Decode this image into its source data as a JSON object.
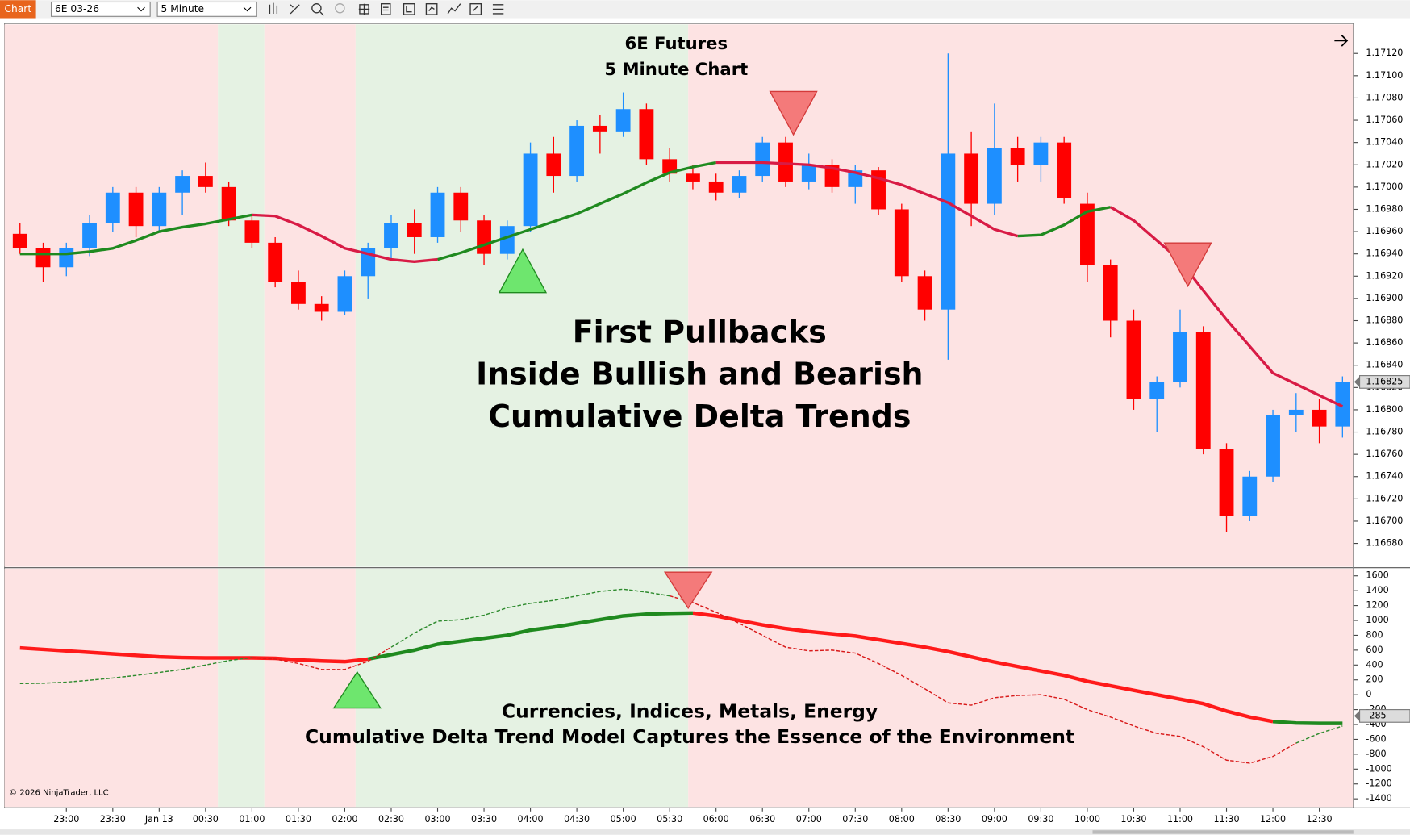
{
  "toolbar": {
    "tab": "Chart",
    "instrument": "6E 03-26",
    "interval": "5 Minute"
  },
  "copyright": "© 2026 NinjaTrader, LLC",
  "chart_data": [
    {
      "type": "candlestick",
      "title": [
        "6E Futures",
        "5 Minute Chart"
      ],
      "annotation": [
        "First Pullbacks",
        "Inside Bullish and Bearish",
        "Cumulative Delta Trends"
      ],
      "up_color": "#1e8fff",
      "down_color": "#ff0000",
      "xlim": [
        20,
        892
      ],
      "xticks": [
        {
          "value": 60,
          "label": "23:00"
        },
        {
          "value": 90,
          "label": "23:30"
        },
        {
          "value": 120,
          "label": "Jan 13"
        },
        {
          "value": 150,
          "label": "00:30"
        },
        {
          "value": 180,
          "label": "01:00"
        },
        {
          "value": 210,
          "label": "01:30"
        },
        {
          "value": 240,
          "label": "02:00"
        },
        {
          "value": 270,
          "label": "02:30"
        },
        {
          "value": 300,
          "label": "03:00"
        },
        {
          "value": 330,
          "label": "03:30"
        },
        {
          "value": 360,
          "label": "04:00"
        },
        {
          "value": 390,
          "label": "04:30"
        },
        {
          "value": 420,
          "label": "05:00"
        },
        {
          "value": 450,
          "label": "05:30"
        },
        {
          "value": 480,
          "label": "06:00"
        },
        {
          "value": 510,
          "label": "06:30"
        },
        {
          "value": 540,
          "label": "07:00"
        },
        {
          "value": 570,
          "label": "07:30"
        },
        {
          "value": 600,
          "label": "08:00"
        },
        {
          "value": 630,
          "label": "08:30"
        },
        {
          "value": 660,
          "label": "09:00"
        },
        {
          "value": 690,
          "label": "09:30"
        },
        {
          "value": 720,
          "label": "10:00"
        },
        {
          "value": 750,
          "label": "10:30"
        },
        {
          "value": 780,
          "label": "11:00"
        },
        {
          "value": 810,
          "label": "11:30"
        },
        {
          "value": 840,
          "label": "12:00"
        },
        {
          "value": 870,
          "label": "12:30"
        }
      ],
      "regions": [
        {
          "x0": 20,
          "x1": 158,
          "color": "#fde3e3"
        },
        {
          "x0": 158,
          "x1": 188,
          "color": "#e5f2e3"
        },
        {
          "x0": 188,
          "x1": 247,
          "color": "#fde3e3"
        },
        {
          "x0": 247,
          "x1": 462,
          "color": "#e5f2e3"
        },
        {
          "x0": 462,
          "x1": 892,
          "color": "#fde3e3"
        }
      ],
      "x": [
        30,
        45,
        60,
        75,
        90,
        105,
        120,
        135,
        150,
        165,
        180,
        195,
        210,
        225,
        240,
        255,
        270,
        285,
        300,
        315,
        330,
        345,
        360,
        375,
        390,
        405,
        420,
        435,
        450,
        465,
        480,
        495,
        510,
        525,
        540,
        555,
        570,
        585,
        600,
        615,
        630,
        645,
        660,
        675,
        690,
        705,
        720,
        735,
        750,
        765,
        780,
        795,
        810,
        825,
        840,
        855,
        870,
        885
      ],
      "ohlc": [
        [
          1.16958,
          1.16968,
          1.1694,
          1.16945
        ],
        [
          1.16945,
          1.1695,
          1.16915,
          1.16928
        ],
        [
          1.16928,
          1.1695,
          1.1692,
          1.16945
        ],
        [
          1.16945,
          1.16975,
          1.16938,
          1.16968
        ],
        [
          1.16968,
          1.17,
          1.1696,
          1.16995
        ],
        [
          1.16995,
          1.17,
          1.16955,
          1.16965
        ],
        [
          1.16965,
          1.17,
          1.1696,
          1.16995
        ],
        [
          1.16995,
          1.17015,
          1.16975,
          1.1701
        ],
        [
          1.1701,
          1.17022,
          1.16995,
          1.17
        ],
        [
          1.17,
          1.17005,
          1.16965,
          1.1697
        ],
        [
          1.1697,
          1.16975,
          1.16945,
          1.1695
        ],
        [
          1.1695,
          1.16955,
          1.1691,
          1.16915
        ],
        [
          1.16915,
          1.16925,
          1.1689,
          1.16895
        ],
        [
          1.16895,
          1.16902,
          1.1688,
          1.16888
        ],
        [
          1.16888,
          1.16925,
          1.16885,
          1.1692
        ],
        [
          1.1692,
          1.1695,
          1.169,
          1.16945
        ],
        [
          1.16945,
          1.16975,
          1.16935,
          1.16968
        ],
        [
          1.16968,
          1.1698,
          1.1694,
          1.16955
        ],
        [
          1.16955,
          1.17,
          1.1695,
          1.16995
        ],
        [
          1.16995,
          1.17,
          1.1696,
          1.1697
        ],
        [
          1.1697,
          1.16975,
          1.1693,
          1.1694
        ],
        [
          1.1694,
          1.1697,
          1.16935,
          1.16965
        ],
        [
          1.16965,
          1.1704,
          1.1696,
          1.1703
        ],
        [
          1.1703,
          1.17045,
          1.16995,
          1.1701
        ],
        [
          1.1701,
          1.1706,
          1.17005,
          1.17055
        ],
        [
          1.17055,
          1.17065,
          1.1703,
          1.1705
        ],
        [
          1.1705,
          1.17085,
          1.17045,
          1.1707
        ],
        [
          1.1707,
          1.17075,
          1.1702,
          1.17025
        ],
        [
          1.17025,
          1.17035,
          1.17005,
          1.17012
        ],
        [
          1.17012,
          1.1702,
          1.16998,
          1.17005
        ],
        [
          1.17005,
          1.17012,
          1.16988,
          1.16995
        ],
        [
          1.16995,
          1.17015,
          1.1699,
          1.1701
        ],
        [
          1.1701,
          1.17045,
          1.17005,
          1.1704
        ],
        [
          1.1704,
          1.17045,
          1.17,
          1.17005
        ],
        [
          1.17005,
          1.1703,
          1.16998,
          1.1702
        ],
        [
          1.1702,
          1.17025,
          1.16995,
          1.17
        ],
        [
          1.17,
          1.1702,
          1.16985,
          1.17015
        ],
        [
          1.17015,
          1.17018,
          1.16975,
          1.1698
        ],
        [
          1.1698,
          1.16985,
          1.16915,
          1.1692
        ],
        [
          1.1692,
          1.16925,
          1.1688,
          1.1689
        ],
        [
          1.1689,
          1.1712,
          1.16845,
          1.1703
        ],
        [
          1.1703,
          1.1705,
          1.16965,
          1.16985
        ],
        [
          1.16985,
          1.17075,
          1.16975,
          1.17035
        ],
        [
          1.17035,
          1.17045,
          1.17005,
          1.1702
        ],
        [
          1.1702,
          1.17045,
          1.17005,
          1.1704
        ],
        [
          1.1704,
          1.17045,
          1.16985,
          1.1699
        ],
        [
          1.16985,
          1.16995,
          1.16915,
          1.1693
        ],
        [
          1.1693,
          1.16935,
          1.16865,
          1.1688
        ],
        [
          1.1688,
          1.1689,
          1.168,
          1.1681
        ],
        [
          1.1681,
          1.1683,
          1.1678,
          1.16825
        ],
        [
          1.16825,
          1.1689,
          1.1682,
          1.1687
        ],
        [
          1.1687,
          1.16875,
          1.1676,
          1.16765
        ],
        [
          1.16765,
          1.1677,
          1.1669,
          1.16705
        ],
        [
          1.16705,
          1.16745,
          1.167,
          1.1674
        ],
        [
          1.1674,
          1.168,
          1.16735,
          1.16795
        ],
        [
          1.16795,
          1.16815,
          1.1678,
          1.168
        ],
        [
          1.168,
          1.1681,
          1.1677,
          1.16785
        ],
        [
          1.16785,
          1.1683,
          1.16775,
          1.16825
        ]
      ],
      "lines": [
        {
          "color": "#1f8a1f",
          "width": 3,
          "dash": false,
          "values": [
            1.1694,
            1.1694,
            1.1694,
            1.16942,
            1.16945,
            1.16952,
            1.1696,
            1.16964,
            1.16967,
            1.16971,
            1.16975,
            null,
            null,
            null,
            null,
            null,
            null,
            null,
            1.16935,
            1.16941,
            1.16948,
            1.16955,
            1.16962,
            1.16969,
            1.16976,
            1.16985,
            1.16994,
            1.17004,
            1.17013,
            1.17018,
            1.17022,
            null,
            null,
            null,
            null,
            null,
            null,
            null,
            null,
            null,
            null,
            null,
            null,
            1.16956,
            1.16957,
            1.16966,
            1.16978,
            1.16982,
            null,
            null,
            null,
            null,
            null,
            null,
            null,
            null,
            null,
            null
          ]
        },
        {
          "color": "#d81b45",
          "width": 3,
          "dash": false,
          "values": [
            null,
            null,
            null,
            null,
            null,
            null,
            null,
            null,
            null,
            null,
            1.16975,
            1.16974,
            1.16966,
            1.16956,
            1.16945,
            1.1694,
            1.16935,
            1.16933,
            1.16935,
            null,
            null,
            null,
            null,
            null,
            null,
            null,
            null,
            null,
            null,
            null,
            1.17022,
            1.17022,
            1.17022,
            1.17021,
            1.1702,
            1.17017,
            1.17013,
            1.17008,
            1.17002,
            1.16994,
            1.16986,
            1.16974,
            1.16962,
            1.16956,
            null,
            null,
            null,
            1.16982,
            1.1697,
            1.16952,
            1.16934,
            1.16907,
            1.16881,
            1.16857,
            1.16833,
            1.16823,
            1.16813,
            1.16803
          ]
        }
      ],
      "markers": [
        {
          "x": 355,
          "y": 1.16944,
          "direction": "up",
          "color": "#6ee66e"
        },
        {
          "x": 530,
          "y": 1.17047,
          "direction": "down",
          "color": "#f47a7a"
        },
        {
          "x": 785,
          "y": 1.16911,
          "direction": "down",
          "color": "#f47a7a"
        }
      ],
      "ylim": [
        1.16659,
        1.17146
      ],
      "yticks": [
        {
          "value": 1.1668,
          "label": "1.16680"
        },
        {
          "value": 1.167,
          "label": "1.16700"
        },
        {
          "value": 1.1672,
          "label": "1.16720"
        },
        {
          "value": 1.1674,
          "label": "1.16740"
        },
        {
          "value": 1.1676,
          "label": "1.16760"
        },
        {
          "value": 1.1678,
          "label": "1.16780"
        },
        {
          "value": 1.168,
          "label": "1.16800"
        },
        {
          "value": 1.1682,
          "label": "1.16820"
        },
        {
          "value": 1.1684,
          "label": "1.16840"
        },
        {
          "value": 1.1686,
          "label": "1.16860"
        },
        {
          "value": 1.1688,
          "label": "1.16880"
        },
        {
          "value": 1.169,
          "label": "1.16900"
        },
        {
          "value": 1.1692,
          "label": "1.16920"
        },
        {
          "value": 1.1694,
          "label": "1.16940"
        },
        {
          "value": 1.1696,
          "label": "1.16960"
        },
        {
          "value": 1.1698,
          "label": "1.16980"
        },
        {
          "value": 1.17,
          "label": "1.17000"
        },
        {
          "value": 1.1702,
          "label": "1.17020"
        },
        {
          "value": 1.1704,
          "label": "1.17040"
        },
        {
          "value": 1.1706,
          "label": "1.17060"
        },
        {
          "value": 1.1708,
          "label": "1.17080"
        },
        {
          "value": 1.171,
          "label": "1.17100"
        },
        {
          "value": 1.1712,
          "label": "1.17120"
        }
      ],
      "current_value": 1.16825
    },
    {
      "type": "line",
      "annotation": [
        "Currencies, Indices, Metals, Energy",
        "Cumulative Delta Trend Model Captures the Essence of the Environment"
      ],
      "lines": [
        {
          "color": "#ff1a1a",
          "width": 4,
          "dash": false,
          "values": [
            630,
            610,
            590,
            570,
            550,
            530,
            510,
            500,
            495,
            495,
            495,
            490,
            470,
            455,
            445,
            480,
            null,
            null,
            null,
            null,
            null,
            null,
            null,
            null,
            null,
            null,
            null,
            null,
            null,
            1100,
            1060,
            1000,
            940,
            890,
            850,
            820,
            790,
            740,
            690,
            640,
            580,
            510,
            440,
            380,
            320,
            260,
            180,
            120,
            60,
            0,
            -60,
            -120,
            -220,
            -300,
            -360,
            null,
            null,
            null
          ]
        },
        {
          "color": "#1f8a1f",
          "width": 4,
          "dash": false,
          "values": [
            null,
            null,
            null,
            null,
            null,
            null,
            null,
            null,
            null,
            null,
            null,
            null,
            null,
            null,
            null,
            480,
            540,
            600,
            680,
            720,
            760,
            800,
            870,
            910,
            960,
            1010,
            1060,
            1085,
            1095,
            1100,
            null,
            null,
            null,
            null,
            null,
            null,
            null,
            null,
            null,
            null,
            null,
            null,
            null,
            null,
            null,
            null,
            null,
            null,
            null,
            null,
            null,
            null,
            null,
            null,
            -360,
            -380,
            -385,
            -385
          ]
        },
        {
          "color": "#2e8b2e",
          "width": 1.3,
          "dash": true,
          "values": [
            150,
            155,
            170,
            195,
            225,
            260,
            300,
            340,
            400,
            460,
            500,
            null,
            null,
            null,
            null,
            null,
            640,
            830,
            990,
            1010,
            1070,
            1170,
            1230,
            1270,
            1330,
            1390,
            1420,
            1380,
            1330,
            null,
            null,
            null,
            null,
            null,
            null,
            null,
            null,
            null,
            null,
            null,
            null,
            null,
            null,
            null,
            null,
            null,
            null,
            null,
            null,
            null,
            null,
            null,
            null,
            null,
            null,
            -650,
            -520,
            -420
          ]
        },
        {
          "color": "#d81b1b",
          "width": 1.3,
          "dash": true,
          "values": [
            null,
            null,
            null,
            null,
            null,
            null,
            null,
            null,
            null,
            null,
            500,
            480,
            420,
            340,
            340,
            450,
            640,
            null,
            null,
            null,
            null,
            null,
            null,
            null,
            null,
            null,
            null,
            null,
            1330,
            1240,
            1110,
            960,
            800,
            640,
            590,
            600,
            560,
            420,
            260,
            80,
            -110,
            -140,
            -40,
            -10,
            0,
            -60,
            -200,
            -300,
            -420,
            -520,
            -560,
            -700,
            -880,
            -920,
            -830,
            -650,
            null,
            null
          ]
        }
      ],
      "markers": [
        {
          "x": 462,
          "y": 1165,
          "direction": "down",
          "color": "#f47a7a"
        },
        {
          "x": 248,
          "y": 306,
          "direction": "up",
          "color": "#6ee66e"
        }
      ],
      "ylim": [
        -1509,
        1697
      ],
      "yticks": [
        1600,
        1400,
        1200,
        1000,
        800,
        600,
        400,
        200,
        0,
        -200,
        -400,
        -600,
        -800,
        -1000,
        -1200,
        -1400
      ],
      "current_value": -285
    }
  ]
}
